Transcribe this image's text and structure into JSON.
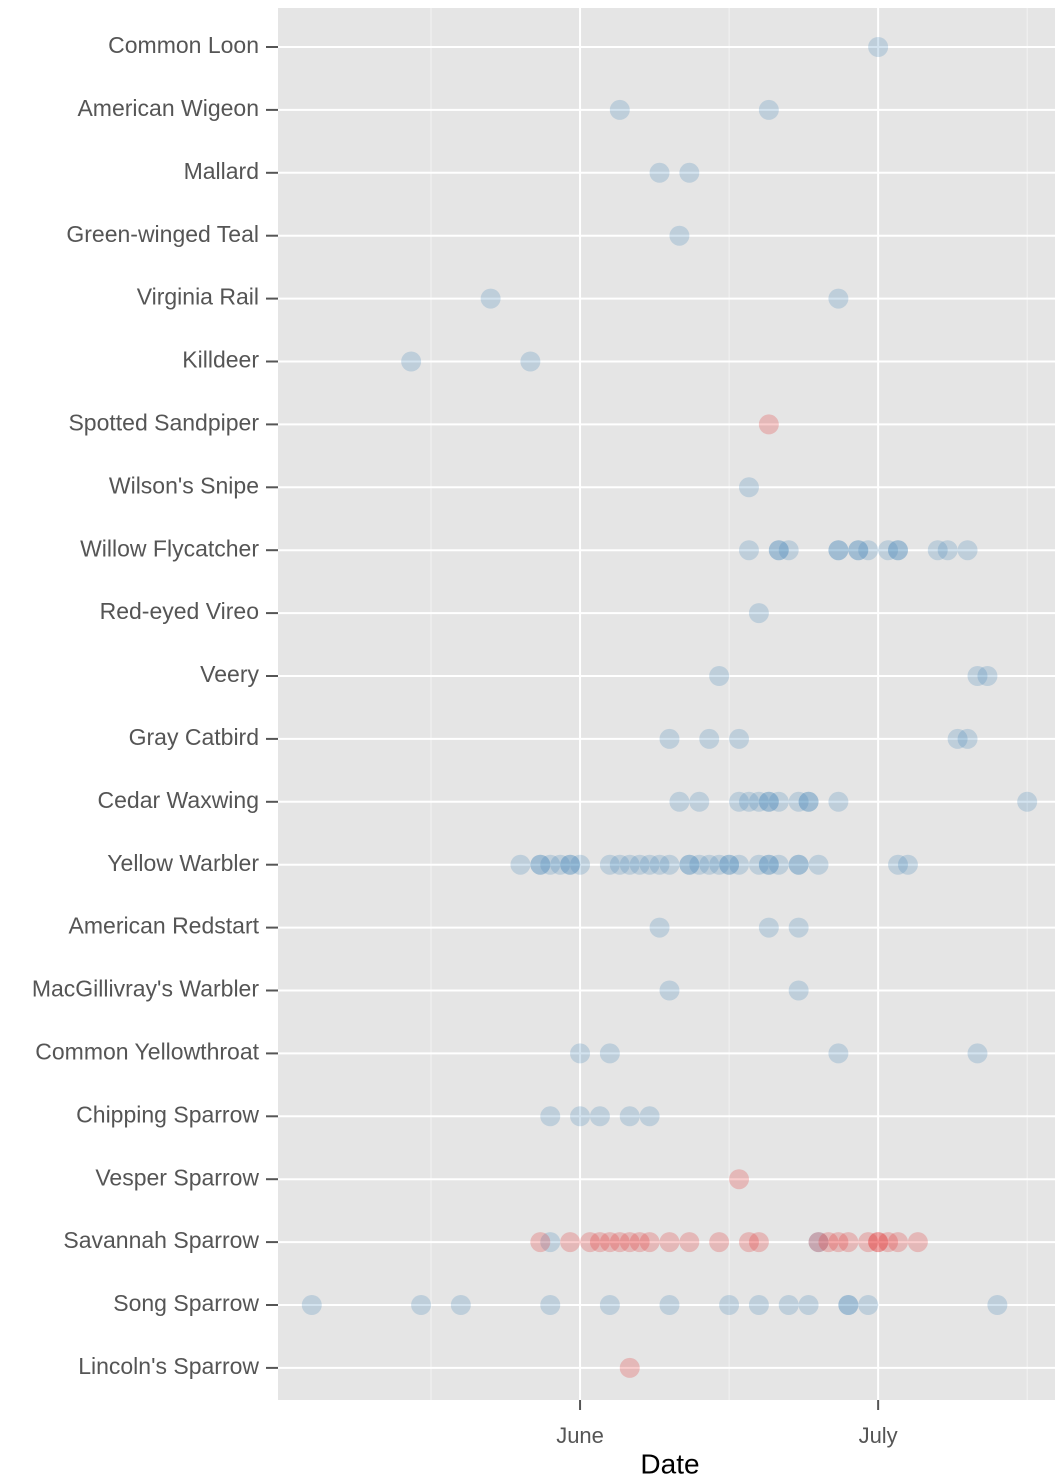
{
  "chart_data": {
    "type": "scatter",
    "x_label": "Date",
    "categories": [
      "Common Loon",
      "American Wigeon",
      "Mallard",
      "Green-winged Teal",
      "Virginia Rail",
      "Killdeer",
      "Spotted Sandpiper",
      "Wilson's Snipe",
      "Willow Flycatcher",
      "Red-eyed Vireo",
      "Veery",
      "Gray Catbird",
      "Cedar Waxwing",
      "Yellow Warbler",
      "American Redstart",
      "MacGillivray's Warbler",
      "Common Yellowthroat",
      "Chipping Sparrow",
      "Vesper Sparrow",
      "Savannah Sparrow",
      "Song Sparrow",
      "Lincoln's Sparrow"
    ],
    "xlim": [
      121.6,
      199.8
    ],
    "xticks": [
      {
        "value": 152,
        "label": "June"
      },
      {
        "value": 182,
        "label": "July"
      }
    ],
    "xminorticks": [
      137,
      167,
      197
    ],
    "grid": true,
    "series": [
      {
        "color": "#377eb8",
        "x": [
          182,
          156,
          171,
          160,
          163,
          162,
          143,
          178,
          135,
          147,
          169,
          169,
          172,
          172,
          173,
          178,
          178,
          180,
          180,
          181,
          183,
          184,
          184,
          188,
          189,
          191,
          170,
          166,
          192,
          193,
          161,
          165,
          168,
          190,
          191,
          162,
          164,
          168,
          169,
          170,
          171,
          171,
          172,
          174,
          175,
          175,
          178,
          197,
          146,
          148,
          148,
          149,
          150,
          151,
          151,
          152,
          155,
          156,
          157,
          158,
          159,
          160,
          161,
          163,
          163,
          164,
          165,
          166,
          167,
          167,
          168,
          170,
          171,
          171,
          172,
          174,
          174,
          176,
          184,
          185,
          160,
          171,
          174,
          161,
          174,
          152,
          155,
          178,
          192,
          149,
          152,
          154,
          157,
          159,
          149,
          176,
          125,
          136,
          140,
          149,
          155,
          161,
          167,
          170,
          173,
          175,
          179,
          179,
          181,
          194
        ],
        "y": [
          "Common Loon",
          "American Wigeon",
          "American Wigeon",
          "Mallard",
          "Mallard",
          "Green-winged Teal",
          "Virginia Rail",
          "Virginia Rail",
          "Killdeer",
          "Killdeer",
          "Wilson's Snipe",
          "Willow Flycatcher",
          "Willow Flycatcher",
          "Willow Flycatcher",
          "Willow Flycatcher",
          "Willow Flycatcher",
          "Willow Flycatcher",
          "Willow Flycatcher",
          "Willow Flycatcher",
          "Willow Flycatcher",
          "Willow Flycatcher",
          "Willow Flycatcher",
          "Willow Flycatcher",
          "Willow Flycatcher",
          "Willow Flycatcher",
          "Willow Flycatcher",
          "Red-eyed Vireo",
          "Veery",
          "Veery",
          "Veery",
          "Gray Catbird",
          "Gray Catbird",
          "Gray Catbird",
          "Gray Catbird",
          "Gray Catbird",
          "Cedar Waxwing",
          "Cedar Waxwing",
          "Cedar Waxwing",
          "Cedar Waxwing",
          "Cedar Waxwing",
          "Cedar Waxwing",
          "Cedar Waxwing",
          "Cedar Waxwing",
          "Cedar Waxwing",
          "Cedar Waxwing",
          "Cedar Waxwing",
          "Cedar Waxwing",
          "Cedar Waxwing",
          "Yellow Warbler",
          "Yellow Warbler",
          "Yellow Warbler",
          "Yellow Warbler",
          "Yellow Warbler",
          "Yellow Warbler",
          "Yellow Warbler",
          "Yellow Warbler",
          "Yellow Warbler",
          "Yellow Warbler",
          "Yellow Warbler",
          "Yellow Warbler",
          "Yellow Warbler",
          "Yellow Warbler",
          "Yellow Warbler",
          "Yellow Warbler",
          "Yellow Warbler",
          "Yellow Warbler",
          "Yellow Warbler",
          "Yellow Warbler",
          "Yellow Warbler",
          "Yellow Warbler",
          "Yellow Warbler",
          "Yellow Warbler",
          "Yellow Warbler",
          "Yellow Warbler",
          "Yellow Warbler",
          "Yellow Warbler",
          "Yellow Warbler",
          "Yellow Warbler",
          "Yellow Warbler",
          "Yellow Warbler",
          "American Redstart",
          "American Redstart",
          "American Redstart",
          "MacGillivray's Warbler",
          "MacGillivray's Warbler",
          "Common Yellowthroat",
          "Common Yellowthroat",
          "Common Yellowthroat",
          "Common Yellowthroat",
          "Chipping Sparrow",
          "Chipping Sparrow",
          "Chipping Sparrow",
          "Chipping Sparrow",
          "Chipping Sparrow",
          "Savannah Sparrow",
          "Savannah Sparrow",
          "Song Sparrow",
          "Song Sparrow",
          "Song Sparrow",
          "Song Sparrow",
          "Song Sparrow",
          "Song Sparrow",
          "Song Sparrow",
          "Song Sparrow",
          "Song Sparrow",
          "Song Sparrow",
          "Song Sparrow",
          "Song Sparrow",
          "Song Sparrow",
          "Song Sparrow"
        ]
      },
      {
        "color": "#e41a1c",
        "x": [
          171,
          168,
          148,
          151,
          153,
          154,
          155,
          156,
          157,
          158,
          159,
          161,
          163,
          166,
          169,
          170,
          176,
          177,
          178,
          179,
          181,
          182,
          182,
          183,
          184,
          186,
          157
        ],
        "y": [
          "Spotted Sandpiper",
          "Vesper Sparrow",
          "Savannah Sparrow",
          "Savannah Sparrow",
          "Savannah Sparrow",
          "Savannah Sparrow",
          "Savannah Sparrow",
          "Savannah Sparrow",
          "Savannah Sparrow",
          "Savannah Sparrow",
          "Savannah Sparrow",
          "Savannah Sparrow",
          "Savannah Sparrow",
          "Savannah Sparrow",
          "Savannah Sparrow",
          "Savannah Sparrow",
          "Savannah Sparrow",
          "Savannah Sparrow",
          "Savannah Sparrow",
          "Savannah Sparrow",
          "Savannah Sparrow",
          "Savannah Sparrow",
          "Savannah Sparrow",
          "Savannah Sparrow",
          "Savannah Sparrow",
          "Savannah Sparrow",
          "Lincoln's Sparrow"
        ]
      }
    ]
  }
}
